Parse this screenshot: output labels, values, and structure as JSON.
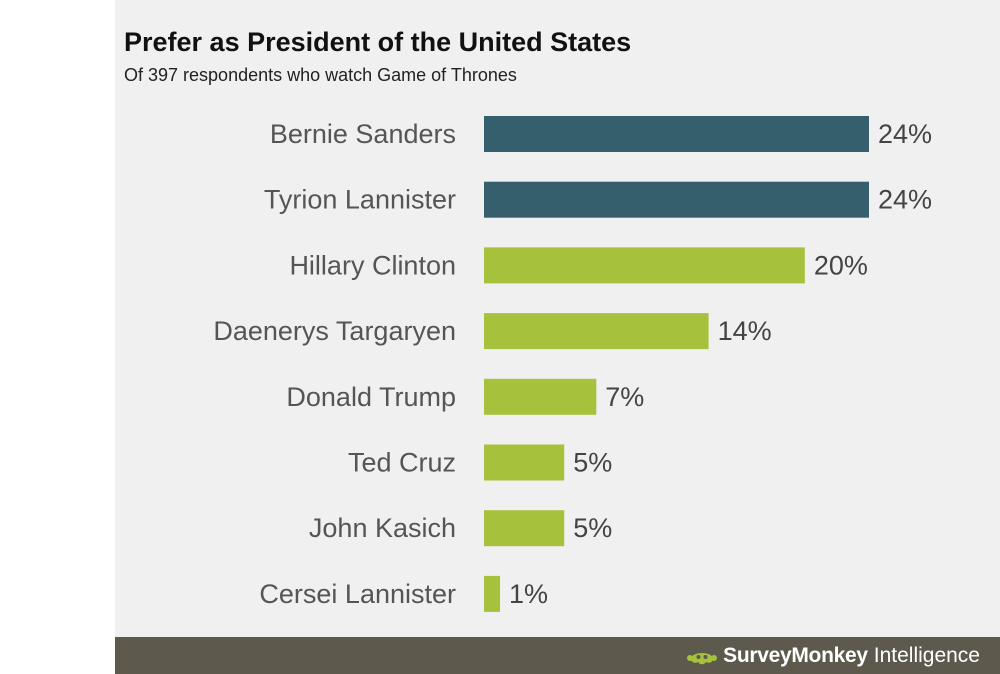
{
  "header": {
    "title": "Prefer as President of the United States",
    "subtitle": "Of 397 respondents who watch Game of Thrones"
  },
  "chart_data": {
    "type": "bar",
    "orientation": "horizontal",
    "title": "Prefer as President of the United States",
    "subtitle": "Of 397 respondents who watch Game of Thrones",
    "categories": [
      "Bernie Sanders",
      "Tyrion Lannister",
      "Hillary Clinton",
      "Daenerys Targaryen",
      "Donald Trump",
      "Ted Cruz",
      "John Kasich",
      "Cersei Lannister"
    ],
    "values": [
      24,
      24,
      20,
      14,
      7,
      5,
      5,
      1
    ],
    "value_labels": [
      "24%",
      "24%",
      "20%",
      "14%",
      "7%",
      "5%",
      "5%",
      "1%"
    ],
    "unit": "%",
    "bar_colors": [
      "#365f6e",
      "#365f6e",
      "#a6c13c",
      "#a6c13c",
      "#a6c13c",
      "#a6c13c",
      "#a6c13c",
      "#a6c13c"
    ],
    "xlim": [
      0,
      24
    ],
    "grid": false,
    "legend": "none"
  },
  "footer": {
    "brand_name": "SurveyMonkey",
    "brand_sub": "Intelligence",
    "logo_icon": "surveymonkey-logo-icon",
    "logo_color": "#a6c13c",
    "background_color": "#5d5a4d"
  }
}
